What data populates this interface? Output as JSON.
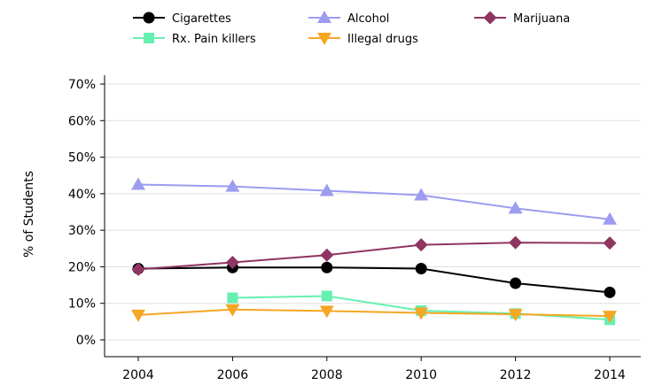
{
  "chart_data": {
    "type": "line",
    "title": "",
    "xlabel": "",
    "ylabel": "% of Students",
    "x": [
      2004,
      2006,
      2008,
      2010,
      2012,
      2014
    ],
    "xlim": [
      2004,
      2014
    ],
    "ylim": [
      0,
      70
    ],
    "y_ticks": [
      0,
      10,
      20,
      30,
      40,
      50,
      60,
      70
    ],
    "y_tick_labels": [
      "0%",
      "10%",
      "20%",
      "30%",
      "40%",
      "50%",
      "60%",
      "70%"
    ],
    "x_tick_labels": [
      "2004",
      "2006",
      "2008",
      "2010",
      "2012",
      "2014"
    ],
    "grid": "horizontal",
    "legend_position": "top",
    "series": [
      {
        "name": "Cigarettes",
        "color": "#000000",
        "marker": "circle",
        "values": [
          19.5,
          19.8,
          19.8,
          19.5,
          15.5,
          13.0
        ]
      },
      {
        "name": "Alcohol",
        "color": "#9c9cf0",
        "marker": "triangle-up",
        "values": [
          42.5,
          42.0,
          40.8,
          39.6,
          36.0,
          33.0
        ]
      },
      {
        "name": "Marijuana",
        "color": "#8e3561",
        "marker": "diamond",
        "values": [
          19.3,
          21.2,
          23.2,
          26.0,
          26.6,
          26.5
        ]
      },
      {
        "name": "Rx. Pain killers",
        "color": "#66f0b0",
        "marker": "square",
        "values": [
          null,
          11.5,
          12.0,
          8.0,
          7.2,
          5.5
        ]
      },
      {
        "name": "Illegal drugs",
        "color": "#f5a623",
        "marker": "triangle-down",
        "values": [
          6.8,
          8.3,
          7.9,
          7.4,
          7.0,
          6.5
        ]
      }
    ]
  }
}
